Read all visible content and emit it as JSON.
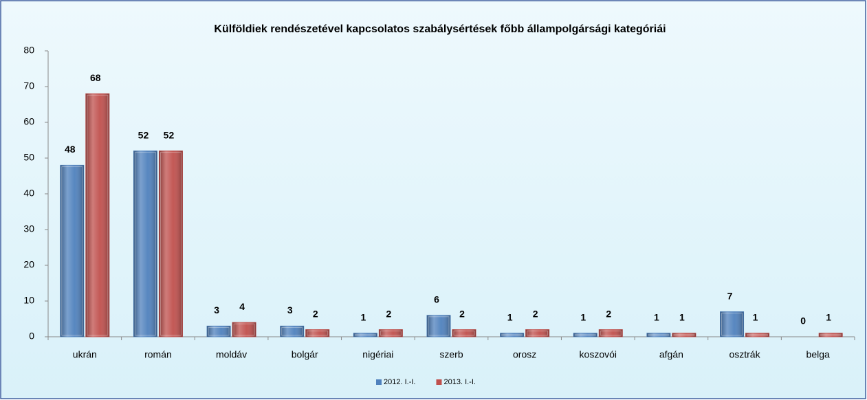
{
  "chart_data": {
    "type": "bar",
    "title": "Külföldiek rendészetével kapcsolatos szabálysértések főbb állampolgársági kategóriái",
    "categories": [
      "ukrán",
      "román",
      "moldáv",
      "bolgár",
      "nigériai",
      "szerb",
      "orosz",
      "koszovói",
      "afgán",
      "osztrák",
      "belga"
    ],
    "series": [
      {
        "name": "2012. I.-I.",
        "color": "#4f81bd",
        "values": [
          48,
          52,
          3,
          3,
          1,
          6,
          1,
          1,
          1,
          7,
          0
        ]
      },
      {
        "name": "2013. I.-I.",
        "color": "#c0504d",
        "values": [
          68,
          52,
          4,
          2,
          2,
          2,
          2,
          2,
          1,
          1,
          1
        ]
      }
    ],
    "ylim": [
      0,
      80
    ],
    "yticks": [
      0,
      10,
      20,
      30,
      40,
      50,
      60,
      70,
      80
    ],
    "grid": false,
    "legend": "bottom"
  }
}
